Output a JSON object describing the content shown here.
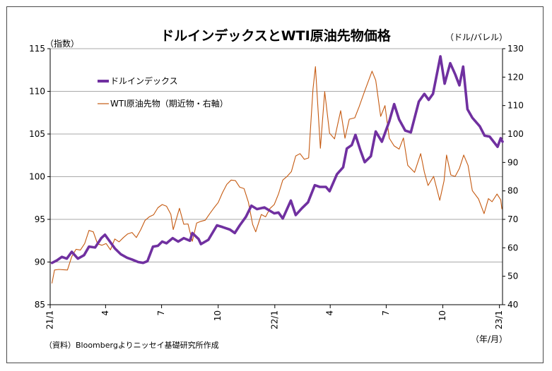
{
  "chart_data": {
    "type": "line",
    "title": "ドルインデックスとWTI原油先物価格",
    "left_axis_unit": "（指数）",
    "right_axis_unit": "（ドル/バレル）",
    "x_axis_unit": "（年/月）",
    "source": "（資料）Bloombergよりニッセイ基礎研究所作成",
    "x_range": [
      "2021-01-01",
      "2023-01-06"
    ],
    "x_ticks": [
      {
        "date": "2021-01-01",
        "label": "21/1"
      },
      {
        "date": "2021-04-01",
        "label": "4"
      },
      {
        "date": "2021-07-01",
        "label": "7"
      },
      {
        "date": "2021-10-01",
        "label": "10"
      },
      {
        "date": "2022-01-01",
        "label": "22/1"
      },
      {
        "date": "2022-04-01",
        "label": "4"
      },
      {
        "date": "2022-07-01",
        "label": "7"
      },
      {
        "date": "2022-10-01",
        "label": "10"
      },
      {
        "date": "2023-01-01",
        "label": "23/1"
      }
    ],
    "y_left": {
      "min": 85,
      "max": 115,
      "ticks": [
        85,
        90,
        95,
        100,
        105,
        110,
        115
      ]
    },
    "y_right": {
      "min": 40,
      "max": 130,
      "ticks": [
        40,
        50,
        60,
        70,
        80,
        90,
        100,
        110,
        120,
        130
      ]
    },
    "grid": "horizontal",
    "legend_position": "top-left",
    "series": [
      {
        "name": "ドルインデックス",
        "axis": "left",
        "color": "#7030a0",
        "points": [
          [
            "2021-01-04",
            89.9
          ],
          [
            "2021-01-12",
            90.2
          ],
          [
            "2021-01-20",
            90.6
          ],
          [
            "2021-01-28",
            90.4
          ],
          [
            "2021-02-05",
            91.2
          ],
          [
            "2021-02-15",
            90.4
          ],
          [
            "2021-02-25",
            90.8
          ],
          [
            "2021-03-05",
            91.8
          ],
          [
            "2021-03-15",
            91.7
          ],
          [
            "2021-03-25",
            92.8
          ],
          [
            "2021-03-31",
            93.2
          ],
          [
            "2021-04-08",
            92.4
          ],
          [
            "2021-04-16",
            91.6
          ],
          [
            "2021-04-26",
            90.9
          ],
          [
            "2021-05-06",
            90.5
          ],
          [
            "2021-05-14",
            90.3
          ],
          [
            "2021-05-24",
            90.0
          ],
          [
            "2021-06-01",
            89.9
          ],
          [
            "2021-06-08",
            90.1
          ],
          [
            "2021-06-17",
            91.8
          ],
          [
            "2021-06-25",
            91.9
          ],
          [
            "2021-07-02",
            92.4
          ],
          [
            "2021-07-09",
            92.2
          ],
          [
            "2021-07-19",
            92.8
          ],
          [
            "2021-07-28",
            92.4
          ],
          [
            "2021-08-06",
            92.8
          ],
          [
            "2021-08-16",
            92.5
          ],
          [
            "2021-08-20",
            93.4
          ],
          [
            "2021-08-30",
            92.7
          ],
          [
            "2021-09-03",
            92.1
          ],
          [
            "2021-09-15",
            92.6
          ],
          [
            "2021-09-29",
            94.3
          ],
          [
            "2021-10-08",
            94.1
          ],
          [
            "2021-10-20",
            93.8
          ],
          [
            "2021-10-28",
            93.4
          ],
          [
            "2021-11-05",
            94.3
          ],
          [
            "2021-11-15",
            95.3
          ],
          [
            "2021-11-24",
            96.6
          ],
          [
            "2021-12-03",
            96.2
          ],
          [
            "2021-12-15",
            96.4
          ],
          [
            "2021-12-31",
            95.7
          ],
          [
            "2022-01-07",
            95.8
          ],
          [
            "2022-01-14",
            95.1
          ],
          [
            "2022-01-27",
            97.2
          ],
          [
            "2022-02-04",
            95.5
          ],
          [
            "2022-02-14",
            96.3
          ],
          [
            "2022-02-24",
            97.0
          ],
          [
            "2022-03-07",
            99.0
          ],
          [
            "2022-03-15",
            98.8
          ],
          [
            "2022-03-25",
            98.8
          ],
          [
            "2022-03-31",
            98.3
          ],
          [
            "2022-04-12",
            100.3
          ],
          [
            "2022-04-22",
            101.1
          ],
          [
            "2022-04-28",
            103.3
          ],
          [
            "2022-05-06",
            103.7
          ],
          [
            "2022-05-12",
            104.9
          ],
          [
            "2022-05-20",
            103.1
          ],
          [
            "2022-05-27",
            101.7
          ],
          [
            "2022-06-06",
            102.4
          ],
          [
            "2022-06-14",
            105.3
          ],
          [
            "2022-06-24",
            104.1
          ],
          [
            "2022-07-06",
            106.5
          ],
          [
            "2022-07-14",
            108.5
          ],
          [
            "2022-07-22",
            106.7
          ],
          [
            "2022-08-01",
            105.4
          ],
          [
            "2022-08-10",
            105.2
          ],
          [
            "2022-08-23",
            108.8
          ],
          [
            "2022-09-01",
            109.7
          ],
          [
            "2022-09-08",
            109.0
          ],
          [
            "2022-09-15",
            109.7
          ],
          [
            "2022-09-27",
            114.1
          ],
          [
            "2022-10-04",
            110.9
          ],
          [
            "2022-10-13",
            113.3
          ],
          [
            "2022-10-21",
            112.0
          ],
          [
            "2022-10-28",
            110.7
          ],
          [
            "2022-11-03",
            112.9
          ],
          [
            "2022-11-10",
            107.9
          ],
          [
            "2022-11-18",
            106.9
          ],
          [
            "2022-11-30",
            105.9
          ],
          [
            "2022-12-08",
            104.8
          ],
          [
            "2022-12-16",
            104.7
          ],
          [
            "2022-12-29",
            103.5
          ],
          [
            "2023-01-03",
            104.5
          ],
          [
            "2023-01-06",
            104.1
          ]
        ]
      },
      {
        "name": "WTI原油先物（期近物・右軸）",
        "axis": "right",
        "color": "#c55a11",
        "points": [
          [
            "2021-01-04",
            47.6
          ],
          [
            "2021-01-08",
            52.2
          ],
          [
            "2021-01-15",
            52.4
          ],
          [
            "2021-01-22",
            52.3
          ],
          [
            "2021-01-29",
            52.2
          ],
          [
            "2021-02-05",
            56.9
          ],
          [
            "2021-02-12",
            59.5
          ],
          [
            "2021-02-19",
            59.2
          ],
          [
            "2021-02-26",
            61.5
          ],
          [
            "2021-03-05",
            66.1
          ],
          [
            "2021-03-12",
            65.6
          ],
          [
            "2021-03-19",
            61.4
          ],
          [
            "2021-03-26",
            60.9
          ],
          [
            "2021-04-02",
            61.5
          ],
          [
            "2021-04-09",
            59.3
          ],
          [
            "2021-04-16",
            63.1
          ],
          [
            "2021-04-23",
            62.1
          ],
          [
            "2021-04-30",
            63.6
          ],
          [
            "2021-05-07",
            64.9
          ],
          [
            "2021-05-14",
            65.4
          ],
          [
            "2021-05-21",
            63.6
          ],
          [
            "2021-05-28",
            66.3
          ],
          [
            "2021-06-04",
            69.6
          ],
          [
            "2021-06-11",
            70.9
          ],
          [
            "2021-06-18",
            71.6
          ],
          [
            "2021-06-25",
            74.1
          ],
          [
            "2021-07-02",
            75.2
          ],
          [
            "2021-07-09",
            74.6
          ],
          [
            "2021-07-16",
            71.8
          ],
          [
            "2021-07-20",
            66.4
          ],
          [
            "2021-07-30",
            73.9
          ],
          [
            "2021-08-06",
            68.3
          ],
          [
            "2021-08-13",
            68.4
          ],
          [
            "2021-08-20",
            62.3
          ],
          [
            "2021-08-27",
            68.7
          ],
          [
            "2021-09-03",
            69.3
          ],
          [
            "2021-09-10",
            69.7
          ],
          [
            "2021-09-17",
            71.9
          ],
          [
            "2021-09-24",
            74.0
          ],
          [
            "2021-10-01",
            75.9
          ],
          [
            "2021-10-08",
            79.4
          ],
          [
            "2021-10-15",
            82.3
          ],
          [
            "2021-10-22",
            83.8
          ],
          [
            "2021-10-29",
            83.6
          ],
          [
            "2021-11-05",
            81.3
          ],
          [
            "2021-11-12",
            80.8
          ],
          [
            "2021-11-19",
            76.1
          ],
          [
            "2021-11-26",
            68.2
          ],
          [
            "2021-12-01",
            65.6
          ],
          [
            "2021-12-10",
            71.7
          ],
          [
            "2021-12-17",
            70.9
          ],
          [
            "2021-12-24",
            73.8
          ],
          [
            "2021-12-31",
            75.2
          ],
          [
            "2022-01-07",
            78.9
          ],
          [
            "2022-01-14",
            83.8
          ],
          [
            "2022-01-21",
            85.1
          ],
          [
            "2022-01-28",
            86.8
          ],
          [
            "2022-02-04",
            92.3
          ],
          [
            "2022-02-11",
            93.1
          ],
          [
            "2022-02-18",
            91.1
          ],
          [
            "2022-02-25",
            91.6
          ],
          [
            "2022-03-04",
            115.7
          ],
          [
            "2022-03-08",
            123.7
          ],
          [
            "2022-03-16",
            95.0
          ],
          [
            "2022-03-23",
            114.9
          ],
          [
            "2022-03-31",
            100.3
          ],
          [
            "2022-04-08",
            98.3
          ],
          [
            "2022-04-18",
            108.2
          ],
          [
            "2022-04-25",
            98.5
          ],
          [
            "2022-05-02",
            105.2
          ],
          [
            "2022-05-11",
            105.7
          ],
          [
            "2022-05-18",
            109.6
          ],
          [
            "2022-05-27",
            115.1
          ],
          [
            "2022-06-08",
            122.1
          ],
          [
            "2022-06-14",
            118.9
          ],
          [
            "2022-06-22",
            106.2
          ],
          [
            "2022-06-29",
            110.0
          ],
          [
            "2022-07-06",
            98.5
          ],
          [
            "2022-07-14",
            95.8
          ],
          [
            "2022-07-22",
            94.7
          ],
          [
            "2022-07-29",
            98.6
          ],
          [
            "2022-08-05",
            89.0
          ],
          [
            "2022-08-16",
            86.5
          ],
          [
            "2022-08-26",
            93.1
          ],
          [
            "2022-09-01",
            86.6
          ],
          [
            "2022-09-07",
            81.9
          ],
          [
            "2022-09-16",
            85.1
          ],
          [
            "2022-09-26",
            76.7
          ],
          [
            "2022-10-03",
            83.6
          ],
          [
            "2022-10-07",
            92.6
          ],
          [
            "2022-10-14",
            85.6
          ],
          [
            "2022-10-21",
            85.1
          ],
          [
            "2022-10-28",
            87.9
          ],
          [
            "2022-11-04",
            92.6
          ],
          [
            "2022-11-11",
            89.0
          ],
          [
            "2022-11-18",
            80.1
          ],
          [
            "2022-11-28",
            77.2
          ],
          [
            "2022-12-07",
            72.0
          ],
          [
            "2022-12-14",
            77.3
          ],
          [
            "2022-12-20",
            76.2
          ],
          [
            "2022-12-28",
            78.9
          ],
          [
            "2023-01-03",
            76.9
          ],
          [
            "2023-01-05",
            73.7
          ]
        ]
      }
    ]
  }
}
